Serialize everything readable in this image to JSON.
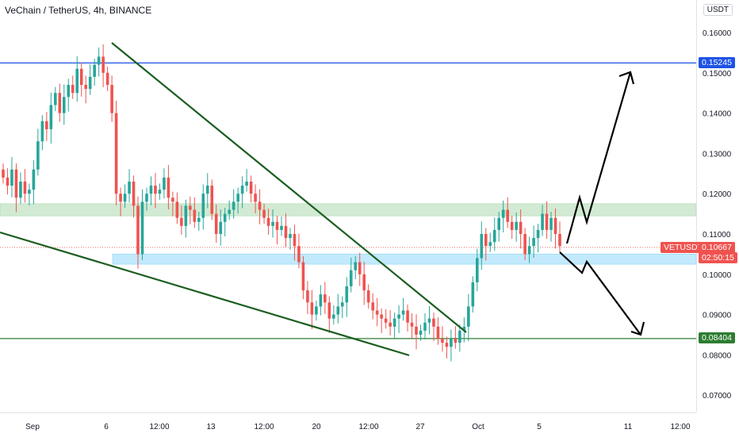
{
  "header": {
    "title": "VeChain / TetherUS, 4h, BINANCE",
    "unit": "USDT"
  },
  "colors": {
    "up": "#26a69a",
    "down": "#ef5350",
    "trendline": "#1b5e20",
    "resistance_line": "#1e53e5",
    "support_line": "#2e7d32",
    "arrow": "#000000",
    "green_zone": "#c8e6c9",
    "blue_zone": "#b3e5fc"
  },
  "price_tags": {
    "resistance": "0.15245",
    "support": "0.08404",
    "symbol": "VETUSDT",
    "last": "0.10667",
    "countdown": "02:50:15"
  },
  "chart_data": {
    "type": "candlestick",
    "title": "VeChain / TetherUS, 4h, BINANCE",
    "y_unit": "USDT",
    "ylim": [
      0.065,
      0.163
    ],
    "y_ticks": [
      "0.16000",
      "0.15000",
      "0.14000",
      "0.13000",
      "0.12000",
      "0.11000",
      "0.10000",
      "0.09000",
      "0.08000",
      "0.07000"
    ],
    "x_ticks": [
      "Sep",
      "6",
      "12:00",
      "13",
      "12:00",
      "20",
      "12:00",
      "27",
      "Oct",
      "5",
      "11",
      "12:00"
    ],
    "last_price": 0.10667,
    "horizontal_levels": [
      {
        "label": "0.15245",
        "value": 0.15245
      },
      {
        "label": "0.08404",
        "value": 0.08404
      }
    ],
    "zones": [
      {
        "name": "green",
        "from": 0.1145,
        "to": 0.1175
      },
      {
        "name": "blue",
        "from": 0.1025,
        "to": 0.105
      }
    ],
    "closes": [
      0.124,
      0.122,
      0.126,
      0.119,
      0.123,
      0.12,
      0.121,
      0.126,
      0.133,
      0.138,
      0.136,
      0.142,
      0.145,
      0.14,
      0.144,
      0.147,
      0.145,
      0.151,
      0.147,
      0.146,
      0.149,
      0.152,
      0.154,
      0.15,
      0.147,
      0.14,
      0.12,
      0.118,
      0.12,
      0.123,
      0.117,
      0.105,
      0.118,
      0.12,
      0.122,
      0.12,
      0.121,
      0.124,
      0.119,
      0.118,
      0.114,
      0.112,
      0.117,
      0.116,
      0.113,
      0.114,
      0.12,
      0.122,
      0.115,
      0.11,
      0.113,
      0.115,
      0.116,
      0.118,
      0.12,
      0.122,
      0.123,
      0.12,
      0.118,
      0.116,
      0.114,
      0.112,
      0.113,
      0.111,
      0.112,
      0.109,
      0.11,
      0.107,
      0.103,
      0.096,
      0.093,
      0.09,
      0.092,
      0.095,
      0.093,
      0.089,
      0.09,
      0.092,
      0.093,
      0.097,
      0.101,
      0.103,
      0.1,
      0.096,
      0.093,
      0.091,
      0.09,
      0.089,
      0.088,
      0.087,
      0.089,
      0.09,
      0.091,
      0.088,
      0.087,
      0.085,
      0.086,
      0.088,
      0.089,
      0.087,
      0.084,
      0.083,
      0.082,
      0.084,
      0.083,
      0.086,
      0.087,
      0.092,
      0.098,
      0.104,
      0.11,
      0.107,
      0.108,
      0.111,
      0.114,
      0.116,
      0.113,
      0.111,
      0.113,
      0.11,
      0.105,
      0.107,
      0.109,
      0.111,
      0.115,
      0.111,
      0.114,
      0.11,
      0.107
    ]
  }
}
